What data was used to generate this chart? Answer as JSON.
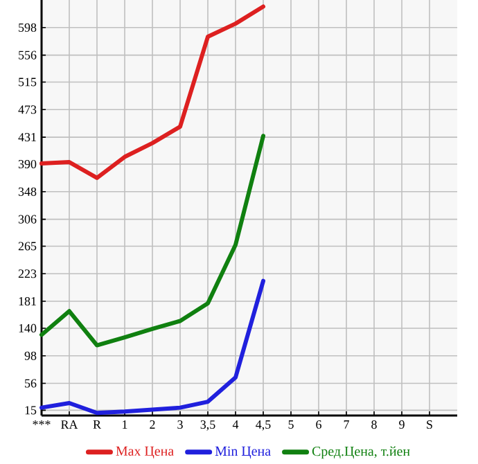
{
  "chart_data": {
    "type": "line",
    "categories": [
      "***",
      "RA",
      "R",
      "1",
      "2",
      "3",
      "3,5",
      "4",
      "4,5",
      "5",
      "6",
      "7",
      "8",
      "9",
      "S"
    ],
    "series": [
      {
        "name": "Max Цена",
        "color": "#dd2020",
        "values": [
          391,
          393,
          369,
          401,
          422,
          447,
          584,
          604,
          630,
          null,
          null,
          null,
          null,
          null,
          null
        ]
      },
      {
        "name": "Min Цена",
        "color": "#2020dd",
        "values": [
          19,
          26,
          11,
          13,
          16,
          19,
          28,
          65,
          212,
          null,
          null,
          null,
          null,
          null,
          null
        ]
      },
      {
        "name": "Сред.Цена, т.йен",
        "color": "#108010",
        "values": [
          130,
          166,
          114,
          126,
          139,
          151,
          178,
          267,
          433,
          null,
          null,
          null,
          null,
          null,
          null
        ]
      }
    ],
    "ylim": [
      7,
      640
    ],
    "yticks": [
      15,
      56,
      98,
      140,
      181,
      223,
      265,
      306,
      348,
      390,
      431,
      473,
      515,
      556,
      598
    ],
    "grid": true,
    "legend": "bottom",
    "marker": "none",
    "line_style": "solid"
  }
}
